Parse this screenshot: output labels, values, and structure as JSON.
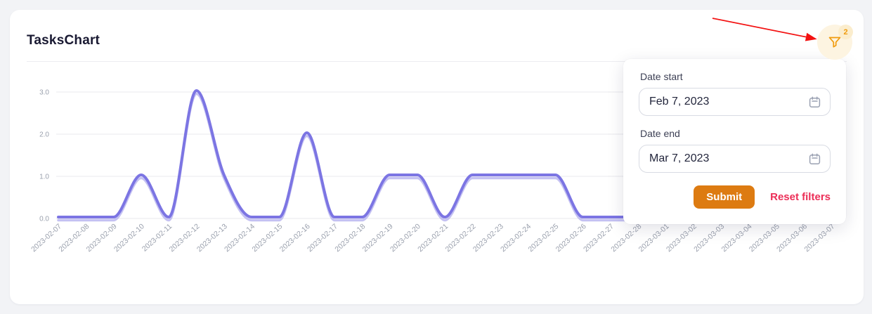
{
  "card": {
    "title": "TasksChart"
  },
  "filter": {
    "badge_count": "2"
  },
  "popup": {
    "date_start_label": "Date start",
    "date_start_value": "Feb 7, 2023",
    "date_end_label": "Date end",
    "date_end_value": "Mar 7, 2023",
    "submit_label": "Submit",
    "reset_label": "Reset filters"
  },
  "colors": {
    "bg": "#f2f3f6",
    "card_bg": "#ffffff",
    "title": "#191932",
    "divider": "#ededf1",
    "grid": "#e8e8ec",
    "tick": "#9aa0ad",
    "line_shadow": "#bab6f0",
    "label": "#3d4055",
    "input_text": "#23263c",
    "input_border": "#d8dbe3",
    "icon_gray": "#9aa1b2",
    "submit": "#dd7b11",
    "reset": "#ec2e57",
    "filter_bg": "#fdf4e1",
    "filter_icon": "#f09b0e",
    "badge_bg": "#fbedcd",
    "badge_text": "#ef9b0d",
    "arrow": "#f31111"
  },
  "chart_data": {
    "type": "line",
    "title": "TasksChart",
    "categories": [
      "2023-02-07",
      "2023-02-08",
      "2023-02-09",
      "2023-02-10",
      "2023-02-11",
      "2023-02-12",
      "2023-02-13",
      "2023-02-14",
      "2023-02-15",
      "2023-02-16",
      "2023-02-17",
      "2023-02-18",
      "2023-02-19",
      "2023-02-20",
      "2023-02-21",
      "2023-02-22",
      "2023-02-23",
      "2023-02-24",
      "2023-02-25",
      "2023-02-26",
      "2023-02-27",
      "2023-02-28",
      "2023-03-01",
      "2023-03-02",
      "2023-03-03",
      "2023-03-04",
      "2023-03-05",
      "2023-03-06",
      "2023-03-07"
    ],
    "values": [
      0,
      0,
      0,
      1,
      0,
      3,
      1,
      0,
      0,
      2,
      0,
      0,
      1,
      1,
      0,
      1,
      1,
      1,
      1,
      0,
      0,
      0,
      0,
      0,
      0,
      0,
      0,
      0,
      0
    ],
    "xlabel": "",
    "ylabel": "",
    "ylim": [
      0,
      3
    ],
    "yticks": [
      0,
      1,
      2,
      3
    ],
    "ytick_labels": [
      "0.0",
      "1.0",
      "2.0",
      "3.0"
    ],
    "x_tick_rotation": -42,
    "grid": true,
    "legend": false,
    "smooth": true,
    "line_color": "#7c75e3",
    "note": "values for 2023-02-28 through 2023-03-07 are obscured by the filter popup and appear flat at 0"
  }
}
